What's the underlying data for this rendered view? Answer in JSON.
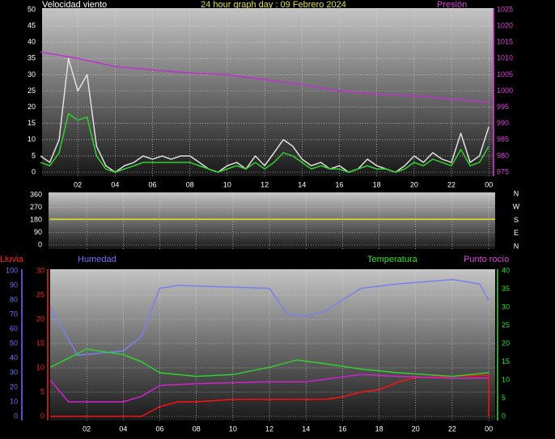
{
  "chart_data": [
    {
      "type": "line",
      "title": "24 hour graph day : 09 Febrero 2024",
      "y_label": "Velocidad viento",
      "xlim": [
        0,
        24.25
      ],
      "xticks": [
        {
          "value": 2,
          "label": "02"
        },
        {
          "value": 4,
          "label": "04"
        },
        {
          "value": 6,
          "label": "06"
        },
        {
          "value": 8,
          "label": "08"
        },
        10,
        12,
        14,
        16,
        18,
        20,
        22,
        {
          "value": 24,
          "label": "00"
        }
      ],
      "ylim": [
        0,
        50
      ],
      "yticks": [
        0,
        5,
        10,
        15,
        20,
        25,
        30,
        35,
        40,
        45,
        50
      ],
      "y_color": "#ffffff",
      "y2lim": [
        975,
        1025
      ],
      "y2ticks": [
        975,
        980,
        985,
        990,
        995,
        1000,
        1005,
        1010,
        1015,
        1020,
        1025
      ],
      "y2_color": "#e040e0",
      "grid": true,
      "series": [
        {
          "color": "#e0e0e0",
          "x": [
            0,
            0.5,
            1,
            1.5,
            2,
            2.5,
            3,
            3.5,
            4,
            4.5,
            5,
            5.5,
            6,
            6.5,
            7,
            7.5,
            8,
            8.5,
            9,
            9.5,
            10,
            10.5,
            11,
            11.5,
            12,
            12.5,
            13,
            13.5,
            14,
            14.5,
            15,
            15.5,
            16,
            16.5,
            17,
            17.5,
            18,
            18.5,
            19,
            19.5,
            20,
            20.5,
            21,
            21.5,
            22,
            22.5,
            23,
            23.5,
            24
          ],
          "values": [
            5,
            3,
            10,
            35,
            25,
            30,
            8,
            2,
            0,
            2,
            3,
            5,
            4,
            5,
            4,
            5,
            5,
            3,
            1,
            0,
            2,
            3,
            1,
            5,
            2,
            6,
            10,
            8,
            4,
            2,
            3,
            1,
            2,
            0,
            1,
            4,
            2,
            1,
            0,
            2,
            5,
            3,
            6,
            4,
            3,
            12,
            3,
            5,
            14
          ]
        },
        {
          "color": "#30d030",
          "x": [
            0,
            0.5,
            1,
            1.5,
            2,
            2.5,
            3,
            3.5,
            4,
            4.5,
            5,
            5.5,
            6,
            6.5,
            7,
            7.5,
            8,
            8.5,
            9,
            9.5,
            10,
            10.5,
            11,
            11.5,
            12,
            12.5,
            13,
            13.5,
            14,
            14.5,
            15,
            15.5,
            16,
            16.5,
            17,
            17.5,
            18,
            18.5,
            19,
            19.5,
            20,
            20.5,
            21,
            21.5,
            22,
            22.5,
            23,
            23.5,
            24
          ],
          "values": [
            3,
            2,
            6,
            18,
            16,
            17,
            5,
            1,
            0,
            1,
            2,
            3,
            3,
            3,
            3,
            3,
            3,
            2,
            1,
            0,
            1,
            2,
            1,
            3,
            1,
            3,
            6,
            5,
            3,
            1,
            2,
            1,
            1,
            0,
            1,
            2,
            1,
            1,
            0,
            1,
            3,
            2,
            4,
            3,
            2,
            7,
            2,
            3,
            8
          ]
        },
        {
          "name": "Presión",
          "color": "#c030d0",
          "axis": "y2",
          "x": [
            0,
            2,
            4,
            6,
            8,
            10,
            12,
            14,
            16,
            18,
            20,
            22,
            24
          ],
          "values": [
            1012,
            1010,
            1007.5,
            1006.5,
            1005.5,
            1005,
            1003.5,
            1002,
            1000,
            999,
            998.5,
            997.5,
            996.5
          ]
        }
      ]
    },
    {
      "type": "line",
      "xlim": [
        0,
        24.35
      ],
      "xticks": [
        {
          "value": 2,
          "label": "02"
        },
        {
          "value": 4,
          "label": "04"
        },
        {
          "value": 6,
          "label": "06"
        },
        {
          "value": 8,
          "label": "08"
        },
        10,
        12,
        14,
        16,
        18,
        20,
        22,
        {
          "value": 24,
          "label": "00"
        }
      ],
      "ylim": [
        0,
        360
      ],
      "yticks": [
        0,
        90,
        180,
        270,
        360
      ],
      "y_color": "#ffffff",
      "grid": true,
      "compass": [
        "N",
        "W",
        "S",
        "E",
        "N"
      ],
      "series": [
        {
          "color": "#e0e020",
          "x": [
            0,
            24.35
          ],
          "values": [
            185,
            185
          ]
        }
      ]
    },
    {
      "type": "line",
      "xlim": [
        0,
        24.35
      ],
      "xticks": [
        {
          "value": 2,
          "label": "02"
        },
        {
          "value": 4,
          "label": "04"
        },
        {
          "value": 6,
          "label": "06"
        },
        {
          "value": 8,
          "label": "08"
        },
        10,
        12,
        14,
        16,
        18,
        20,
        22,
        {
          "value": 24,
          "label": "00"
        }
      ],
      "ylim": [
        0,
        30
      ],
      "yticks": [
        0,
        5,
        10,
        15,
        20,
        25,
        30
      ],
      "y_color": "#ff2020",
      "y2lim": [
        0,
        40
      ],
      "y2ticks": [
        0,
        5,
        10,
        15,
        20,
        25,
        30,
        35,
        40
      ],
      "y2_color": "#30e030",
      "y3lim": [
        0,
        100
      ],
      "y3ticks": [
        0,
        10,
        20,
        30,
        40,
        50,
        60,
        70,
        80,
        90,
        100
      ],
      "y3_color": "#7070ff",
      "grid": true,
      "series": [
        {
          "name": "Lluvia",
          "color": "#ff1010",
          "axis": "y",
          "x": [
            0,
            5,
            6,
            7,
            8,
            10,
            15,
            16,
            17,
            18,
            19,
            20,
            24,
            24
          ],
          "values": [
            0,
            0,
            2,
            3,
            3,
            3.5,
            3.5,
            4,
            5,
            5.5,
            7,
            8,
            8.5,
            0
          ]
        },
        {
          "name": "Humedad",
          "color": "#7a80ee",
          "axis": "y3",
          "x": [
            0,
            1.5,
            4,
            5,
            6,
            7,
            12,
            13,
            14,
            15,
            16,
            17,
            19,
            21,
            22,
            23.5,
            24
          ],
          "values": [
            75,
            42,
            45,
            55,
            88,
            90,
            88,
            70,
            69,
            72,
            80,
            88,
            91,
            93,
            94,
            91,
            80
          ]
        },
        {
          "name": "Temperatura",
          "color": "#30d030",
          "axis": "y2",
          "x": [
            0,
            2,
            4,
            5,
            6,
            8,
            10,
            12,
            13.5,
            15,
            17,
            19,
            22,
            24
          ],
          "values": [
            13.5,
            18.5,
            17,
            15,
            12,
            11,
            11.5,
            13.5,
            15.5,
            14.5,
            13,
            12,
            11,
            12
          ]
        },
        {
          "name": "Punto rocío",
          "color": "#d020d0",
          "axis": "y2",
          "x": [
            0,
            1,
            4,
            5,
            6,
            8,
            12,
            14,
            17,
            19,
            22,
            24
          ],
          "values": [
            10,
            4,
            4,
            5.5,
            8.5,
            9,
            9.5,
            9.5,
            11.5,
            11,
            10.5,
            10.5
          ]
        }
      ]
    }
  ]
}
